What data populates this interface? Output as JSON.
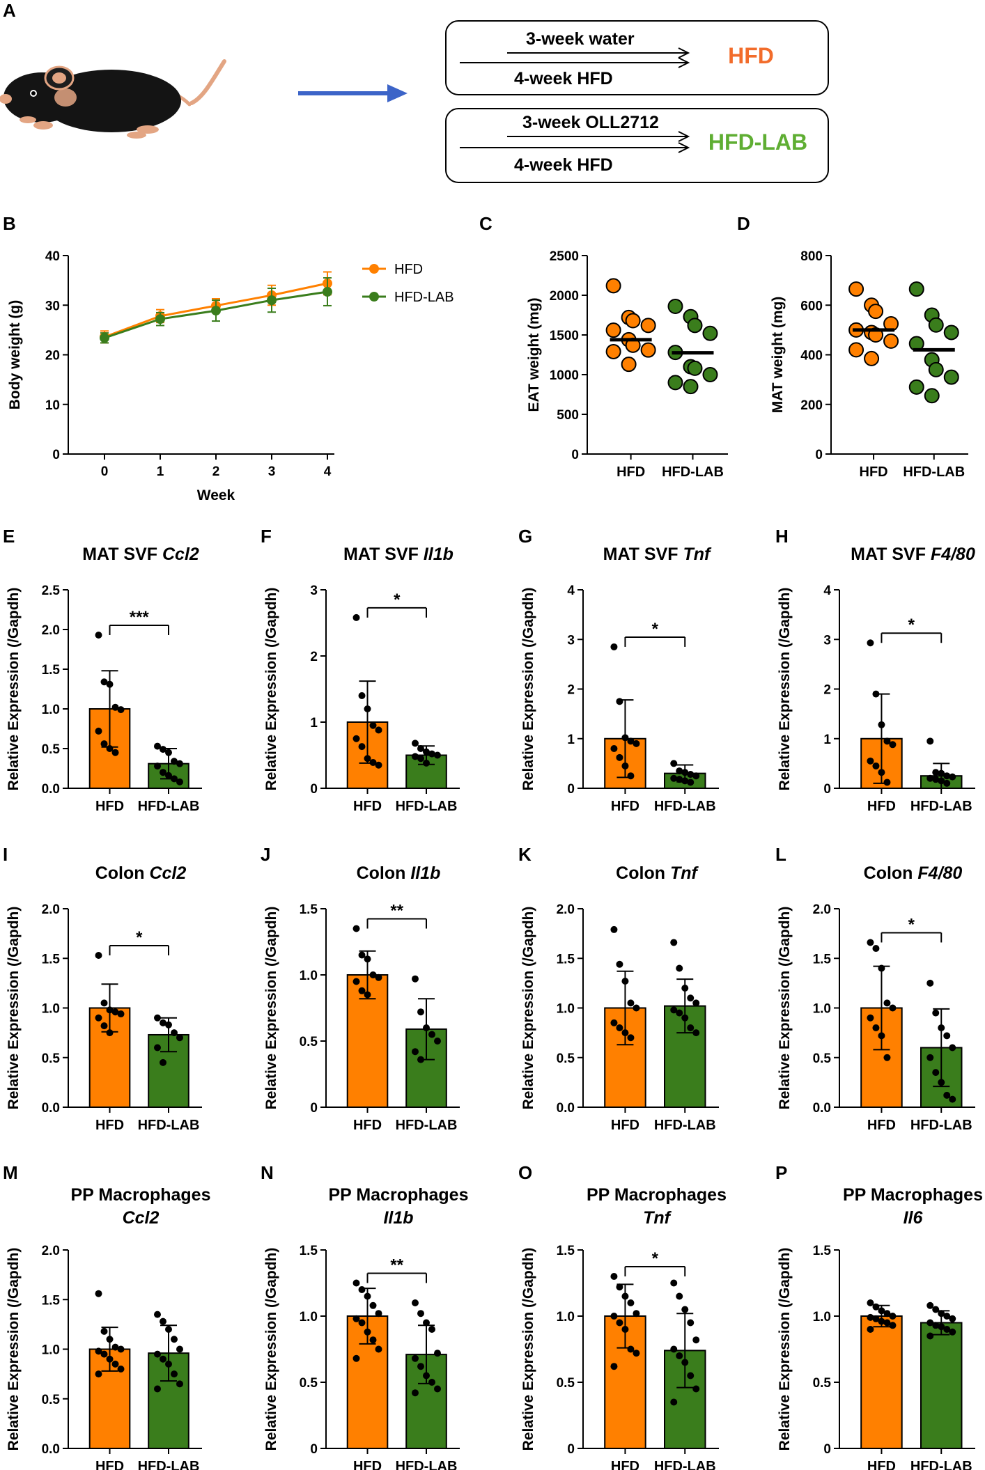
{
  "colors": {
    "hfd": "#FF8000",
    "hfd_lab": "#3A7D1C",
    "hfd_label": "#F26C2B",
    "hfd_lab_label": "#5FAE33",
    "arrow": "#3C64C8"
  },
  "schematic": {
    "panel_letter": "A",
    "box1": {
      "top_text": "3-week water",
      "bottom_text": "4-week HFD",
      "group": "HFD"
    },
    "box2": {
      "top_text": "3-week OLL2712",
      "bottom_text": "4-week HFD",
      "group": "HFD-LAB"
    }
  },
  "chart_data": [
    {
      "id": "B",
      "letter": "B",
      "type": "line",
      "ylabel": "Body weight (g)",
      "xlabel": "Week",
      "ylim": [
        0,
        40
      ],
      "yticks": [
        "0",
        "10",
        "20",
        "30",
        "40"
      ],
      "xticks": [
        "0",
        "1",
        "2",
        "3",
        "4"
      ],
      "x": [
        0,
        1,
        2,
        3,
        4
      ],
      "legend": [
        "HFD",
        "HFD-LAB"
      ],
      "series": [
        {
          "name": "HFD",
          "values": [
            23.6,
            27.8,
            29.9,
            32,
            34.4
          ],
          "err": [
            1.2,
            1.3,
            1.4,
            2,
            2.3
          ]
        },
        {
          "name": "HFD-LAB",
          "values": [
            23.4,
            27.2,
            28.9,
            31,
            32.7
          ],
          "err": [
            1,
            1.3,
            2.1,
            2.4,
            2.8
          ]
        }
      ]
    },
    {
      "id": "C",
      "letter": "C",
      "type": "scatter",
      "ylabel": "EAT weight (mg)",
      "ylim": [
        0,
        2500
      ],
      "yticks": [
        "0",
        "500",
        "1000",
        "1500",
        "2000",
        "2500"
      ],
      "categories": [
        "HFD",
        "HFD-LAB"
      ],
      "groups": [
        {
          "name": "HFD",
          "points": [
            2120,
            1720,
            1680,
            1620,
            1560,
            1440,
            1370,
            1310,
            1290,
            1130
          ],
          "mean": 1440
        },
        {
          "name": "HFD-LAB",
          "points": [
            1860,
            1730,
            1620,
            1520,
            1280,
            1100,
            1080,
            1000,
            900,
            850
          ],
          "mean": 1275
        }
      ]
    },
    {
      "id": "D",
      "letter": "D",
      "type": "scatter",
      "ylabel": "MAT weight (mg)",
      "ylim": [
        0,
        800
      ],
      "yticks": [
        "0",
        "200",
        "400",
        "600",
        "800"
      ],
      "categories": [
        "HFD",
        "HFD-LAB"
      ],
      "groups": [
        {
          "name": "HFD",
          "points": [
            665,
            600,
            575,
            525,
            500,
            490,
            480,
            455,
            420,
            385
          ],
          "mean": 500
        },
        {
          "name": "HFD-LAB",
          "points": [
            665,
            560,
            520,
            490,
            445,
            380,
            340,
            310,
            270,
            235
          ],
          "mean": 420
        }
      ]
    },
    {
      "id": "E",
      "letter": "E",
      "type": "bar",
      "title": "MAT SVF ",
      "gene": "Ccl2",
      "ylabel": "Relative Expression (/Gapdh)",
      "ylim": [
        0,
        2.5
      ],
      "yticks": [
        "0.0",
        "0.5",
        "1.0",
        "1.5",
        "2.0",
        "2.5"
      ],
      "categories": [
        "HFD",
        "HFD-LAB"
      ],
      "values": [
        1.0,
        0.31
      ],
      "sd": [
        0.48,
        0.19
      ],
      "significance": "***",
      "points": [
        [
          1.93,
          1.34,
          1.31,
          1.02,
          0.99,
          0.72,
          0.56,
          0.5,
          0.45
        ],
        [
          0.53,
          0.49,
          0.45,
          0.34,
          0.31,
          0.28,
          0.2,
          0.16,
          0.12,
          0.08
        ]
      ]
    },
    {
      "id": "F",
      "letter": "F",
      "type": "bar",
      "title": "MAT SVF ",
      "gene": "Il1b",
      "ylabel": "Relative Expression (/Gapdh)",
      "ylim": [
        0,
        3
      ],
      "yticks": [
        "0",
        "1",
        "2",
        "3"
      ],
      "categories": [
        "HFD",
        "HFD-LAB"
      ],
      "values": [
        1.0,
        0.5
      ],
      "sd": [
        0.62,
        0.14
      ],
      "significance": "*",
      "points": [
        [
          2.58,
          1.4,
          1.2,
          0.95,
          0.88,
          0.75,
          0.63,
          0.45,
          0.39,
          0.35
        ],
        [
          0.68,
          0.6,
          0.55,
          0.52,
          0.5,
          0.48,
          0.45,
          0.38
        ]
      ]
    },
    {
      "id": "G",
      "letter": "G",
      "type": "bar",
      "title": "MAT SVF ",
      "gene": "Tnf",
      "ylabel": "Relative Expression (/Gapdh)",
      "ylim": [
        0,
        4
      ],
      "yticks": [
        "0",
        "1",
        "2",
        "3",
        "4"
      ],
      "categories": [
        "HFD",
        "HFD-LAB"
      ],
      "values": [
        1.0,
        0.3
      ],
      "sd": [
        0.78,
        0.17
      ],
      "significance": "*",
      "points": [
        [
          2.85,
          1.75,
          1.02,
          0.95,
          0.9,
          0.8,
          0.62,
          0.45,
          0.25
        ],
        [
          0.5,
          0.35,
          0.32,
          0.28,
          0.25,
          0.2,
          0.18,
          0.15,
          0.12
        ]
      ]
    },
    {
      "id": "H",
      "letter": "H",
      "type": "bar",
      "title": "MAT SVF ",
      "gene": "F4/80",
      "ylabel": "Relative Expression (/Gapdh)",
      "ylim": [
        0,
        4
      ],
      "yticks": [
        "0",
        "1",
        "2",
        "3",
        "4"
      ],
      "categories": [
        "HFD",
        "HFD-LAB"
      ],
      "values": [
        1.0,
        0.25
      ],
      "sd": [
        0.9,
        0.25
      ],
      "significance": "*",
      "points": [
        [
          2.93,
          1.9,
          1.28,
          0.95,
          0.88,
          0.55,
          0.45,
          0.32,
          0.12
        ],
        [
          0.95,
          0.32,
          0.3,
          0.25,
          0.23,
          0.2,
          0.18,
          0.15,
          0.1
        ]
      ]
    },
    {
      "id": "I",
      "letter": "I",
      "type": "bar",
      "title": "Colon ",
      "gene": "Ccl2",
      "ylabel": "Relative Expression (/Gapdh)",
      "ylim": [
        0,
        2
      ],
      "yticks": [
        "0.0",
        "0.5",
        "1.0",
        "1.5",
        "2.0"
      ],
      "categories": [
        "HFD",
        "HFD-LAB"
      ],
      "values": [
        1.0,
        0.73
      ],
      "sd": [
        0.24,
        0.17
      ],
      "significance": "*",
      "points": [
        [
          1.53,
          1.05,
          0.98,
          0.96,
          0.94,
          0.9,
          0.82,
          0.75
        ],
        [
          0.9,
          0.85,
          0.83,
          0.75,
          0.7,
          0.6,
          0.45
        ]
      ]
    },
    {
      "id": "J",
      "letter": "J",
      "type": "bar",
      "title": "Colon ",
      "gene": "Il1b",
      "ylabel": "Relative Expression (/Gapdh)",
      "ylim": [
        0,
        1.5
      ],
      "yticks": [
        "0",
        "0.5",
        "1.0",
        "1.5"
      ],
      "categories": [
        "HFD",
        "HFD-LAB"
      ],
      "values": [
        1.0,
        0.59
      ],
      "sd": [
        0.18,
        0.23
      ],
      "significance": "**",
      "points": [
        [
          1.35,
          1.15,
          1.12,
          1.0,
          0.98,
          0.95,
          0.88,
          0.85
        ],
        [
          0.97,
          0.72,
          0.6,
          0.55,
          0.5,
          0.42,
          0.36
        ]
      ]
    },
    {
      "id": "K",
      "letter": "K",
      "type": "bar",
      "title": "Colon ",
      "gene": "Tnf",
      "ylabel": "Relative Expression (/Gapdh)",
      "ylim": [
        0,
        2
      ],
      "yticks": [
        "0.0",
        "0.5",
        "1.0",
        "1.5",
        "2.0"
      ],
      "categories": [
        "HFD",
        "HFD-LAB"
      ],
      "values": [
        1.0,
        1.02
      ],
      "sd": [
        0.37,
        0.27
      ],
      "significance": "",
      "points": [
        [
          1.79,
          1.44,
          1.27,
          1.05,
          1.0,
          0.85,
          0.8,
          0.75,
          0.7
        ],
        [
          1.66,
          1.4,
          1.2,
          1.1,
          1.05,
          0.98,
          0.95,
          0.9,
          0.8,
          0.75
        ]
      ]
    },
    {
      "id": "L",
      "letter": "L",
      "type": "bar",
      "title": "Colon ",
      "gene": "F4/80",
      "ylabel": "Relative Expression (/Gapdh)",
      "ylim": [
        0,
        2
      ],
      "yticks": [
        "0.0",
        "0.5",
        "1.0",
        "1.5",
        "2.0"
      ],
      "categories": [
        "HFD",
        "HFD-LAB"
      ],
      "values": [
        1.0,
        0.6
      ],
      "sd": [
        0.42,
        0.39
      ],
      "significance": "*",
      "points": [
        [
          1.66,
          1.6,
          1.4,
          1.05,
          1.0,
          0.9,
          0.8,
          0.72,
          0.5
        ],
        [
          1.25,
          0.95,
          0.8,
          0.72,
          0.6,
          0.5,
          0.35,
          0.25,
          0.12,
          0.08
        ]
      ]
    },
    {
      "id": "M",
      "letter": "M",
      "type": "bar",
      "title": "PP Macrophages",
      "gene": "Ccl2",
      "ylabel": "Relative Expression (/Gapdh)",
      "ylim": [
        0,
        2
      ],
      "yticks": [
        "0.0",
        "0.5",
        "1.0",
        "1.5",
        "2.0"
      ],
      "categories": [
        "HFD",
        "HFD-LAB"
      ],
      "values": [
        1.0,
        0.96
      ],
      "sd": [
        0.22,
        0.28
      ],
      "significance": "",
      "points": [
        [
          1.56,
          1.18,
          1.1,
          1.02,
          1.0,
          0.98,
          0.95,
          0.9,
          0.85,
          0.8,
          0.75
        ],
        [
          1.35,
          1.28,
          1.2,
          1.1,
          1.0,
          0.95,
          0.9,
          0.85,
          0.75,
          0.65,
          0.6
        ]
      ]
    },
    {
      "id": "N",
      "letter": "N",
      "type": "bar",
      "title": "PP Macrophages",
      "gene": "Il1b",
      "ylabel": "Relative Expression (/Gapdh)",
      "ylim": [
        0,
        1.5
      ],
      "yticks": [
        "0",
        "0.5",
        "1.0",
        "1.5"
      ],
      "categories": [
        "HFD",
        "HFD-LAB"
      ],
      "values": [
        1.0,
        0.71
      ],
      "sd": [
        0.21,
        0.22
      ],
      "significance": "**",
      "points": [
        [
          1.25,
          1.2,
          1.15,
          1.08,
          1.02,
          0.98,
          0.95,
          0.88,
          0.82,
          0.75,
          0.68
        ],
        [
          1.1,
          1.02,
          0.95,
          0.9,
          0.72,
          0.68,
          0.62,
          0.55,
          0.5,
          0.45,
          0.42
        ]
      ]
    },
    {
      "id": "O",
      "letter": "O",
      "type": "bar",
      "title": "PP Macrophages",
      "gene": "Tnf",
      "ylabel": "Relative Expression (/Gapdh)",
      "ylim": [
        0,
        1.5
      ],
      "yticks": [
        "0",
        "0.5",
        "1.0",
        "1.5"
      ],
      "categories": [
        "HFD",
        "HFD-LAB"
      ],
      "values": [
        1.0,
        0.74
      ],
      "sd": [
        0.24,
        0.28
      ],
      "significance": "*",
      "points": [
        [
          1.3,
          1.22,
          1.15,
          1.1,
          1.02,
          1.0,
          0.95,
          0.9,
          0.75,
          0.72,
          0.62
        ],
        [
          1.25,
          1.15,
          1.05,
          0.95,
          0.82,
          0.75,
          0.7,
          0.65,
          0.55,
          0.45,
          0.35
        ]
      ]
    },
    {
      "id": "P",
      "letter": "P",
      "type": "bar",
      "title": "PP Macrophages",
      "gene": "Il6",
      "ylabel": "Relative Expression (/Gapdh)",
      "ylim": [
        0,
        1.5
      ],
      "yticks": [
        "0",
        "0.5",
        "1.0",
        "1.5"
      ],
      "categories": [
        "HFD",
        "HFD-LAB"
      ],
      "values": [
        1.0,
        0.95
      ],
      "sd": [
        0.08,
        0.09
      ],
      "significance": "",
      "points": [
        [
          1.1,
          1.07,
          1.04,
          1.02,
          1.0,
          0.99,
          0.98,
          0.96,
          0.95,
          0.93,
          0.9
        ],
        [
          1.08,
          1.05,
          1.02,
          1.0,
          0.98,
          0.95,
          0.93,
          0.92,
          0.9,
          0.88,
          0.85
        ]
      ]
    }
  ]
}
